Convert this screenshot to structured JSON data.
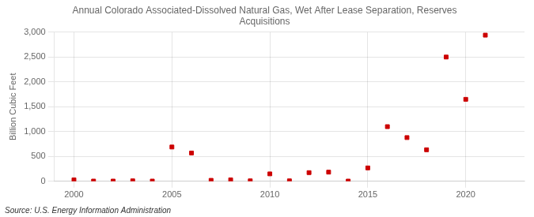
{
  "chart_data": {
    "type": "scatter",
    "title": "Annual Colorado Associated-Dissolved Natural Gas, Wet After Lease Separation, Reserves\nAcquisitions",
    "ylabel": "Billion Cubic Feet",
    "source": "Source: U.S. Energy Information Administration",
    "x": [
      2000,
      2001,
      2002,
      2003,
      2004,
      2005,
      2006,
      2007,
      2008,
      2009,
      2010,
      2011,
      2012,
      2013,
      2014,
      2015,
      2016,
      2017,
      2018,
      2019,
      2020,
      2021
    ],
    "values": [
      30,
      5,
      5,
      10,
      5,
      690,
      570,
      20,
      30,
      10,
      150,
      10,
      175,
      185,
      5,
      270,
      1100,
      880,
      635,
      2500,
      1650,
      2940
    ],
    "color": "#cc0000",
    "marker": "square",
    "xlim": [
      1999,
      2023
    ],
    "ylim": [
      0,
      3000
    ],
    "xticks": [
      2000,
      2005,
      2010,
      2015,
      2020
    ],
    "yticks": [
      0,
      500,
      {
        "value": 1000,
        "label": "1,000"
      },
      {
        "value": 1500,
        "label": "1,500"
      },
      {
        "value": 2000,
        "label": "2,000"
      },
      {
        "value": 2500,
        "label": "2,500"
      },
      {
        "value": 3000,
        "label": "3,000"
      }
    ],
    "grid": true
  }
}
